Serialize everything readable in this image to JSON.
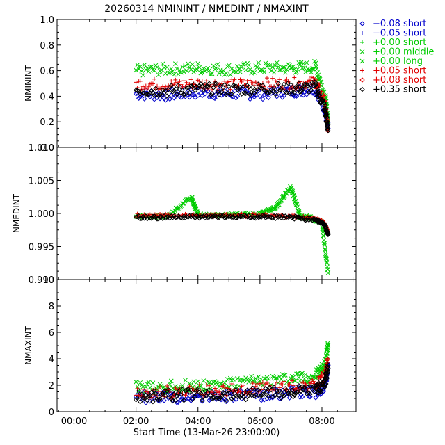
{
  "title": "20260314 NMININT / NMEDINT / NMAXINT",
  "xlabel": "Start Time (13-Mar-26 23:00:00)",
  "x_ticks": [
    "00:00",
    "02:00",
    "04:00",
    "06:00",
    "08:00"
  ],
  "legend": [
    {
      "label": "−0.08 short",
      "color": "#0000cc",
      "marker": "diamond"
    },
    {
      "label": "−0.05 short",
      "color": "#0000cc",
      "marker": "plus"
    },
    {
      "label": "+0.00 short",
      "color": "#00cc00",
      "marker": "plus"
    },
    {
      "label": "+0.00 middle",
      "color": "#00cc00",
      "marker": "cross"
    },
    {
      "label": "+0.00 long",
      "color": "#00cc00",
      "marker": "cross"
    },
    {
      "label": "+0.05 short",
      "color": "#e00000",
      "marker": "plus"
    },
    {
      "label": "+0.08 short",
      "color": "#e00000",
      "marker": "diamond"
    },
    {
      "label": "+0.35 short",
      "color": "#000000",
      "marker": "diamond"
    }
  ],
  "chart_data": [
    {
      "type": "scatter",
      "ylabel": "NMININT",
      "ylim": [
        0,
        1.0
      ],
      "yticks": [
        "0.0",
        "0.2",
        "0.4",
        "0.6",
        "0.8",
        "1.0"
      ],
      "x_range_hours": [
        -0.55,
        9.1
      ],
      "series": [
        {
          "name": "−0.08 short",
          "x": [
            2.0,
            3.0,
            4.0,
            5.0,
            6.0,
            7.0,
            7.8,
            8.1,
            8.2
          ],
          "y": [
            0.42,
            0.41,
            0.43,
            0.42,
            0.42,
            0.44,
            0.46,
            0.3,
            0.15
          ]
        },
        {
          "name": "+0.00 middle",
          "x": [
            2.0,
            3.0,
            4.0,
            5.0,
            6.0,
            7.0,
            7.8,
            8.1,
            8.2
          ],
          "y": [
            0.6,
            0.61,
            0.62,
            0.61,
            0.62,
            0.62,
            0.63,
            0.4,
            0.2
          ]
        },
        {
          "name": "+0.05 short",
          "x": [
            2.0,
            3.0,
            4.0,
            5.0,
            6.0,
            7.0,
            7.8,
            8.1,
            8.2
          ],
          "y": [
            0.5,
            0.49,
            0.5,
            0.49,
            0.5,
            0.5,
            0.51,
            0.35,
            0.15
          ]
        },
        {
          "name": "+0.35 short",
          "x": [
            2.0,
            3.0,
            4.0,
            5.0,
            6.0,
            7.0,
            7.8,
            8.1,
            8.2
          ],
          "y": [
            0.45,
            0.44,
            0.46,
            0.45,
            0.46,
            0.46,
            0.47,
            0.3,
            0.13
          ]
        }
      ]
    },
    {
      "type": "scatter",
      "ylabel": "NMEDINT",
      "ylim": [
        0.99,
        1.01
      ],
      "yticks": [
        "0.990",
        "0.995",
        "1.000",
        "1.005",
        "1.010"
      ],
      "x_range_hours": [
        -0.55,
        9.1
      ],
      "series": [
        {
          "name": "+0.00 middle",
          "x": [
            2.0,
            3.0,
            3.8,
            4.0,
            5.0,
            6.0,
            6.5,
            7.0,
            7.3,
            7.6,
            8.0,
            8.2
          ],
          "y": [
            0.9995,
            0.9996,
            1.0025,
            0.9997,
            0.9998,
            0.9999,
            1.0008,
            1.004,
            0.9995,
            0.9994,
            0.9985,
            0.991
          ]
        },
        {
          "name": "+0.05 short",
          "x": [
            2.0,
            3.0,
            4.0,
            5.0,
            6.0,
            7.0,
            7.8,
            8.1,
            8.2
          ],
          "y": [
            0.9997,
            0.9997,
            0.9997,
            0.9997,
            0.9997,
            0.9996,
            0.9993,
            0.9985,
            0.997
          ]
        },
        {
          "name": "+0.35 short",
          "x": [
            2.0,
            3.0,
            4.0,
            5.0,
            6.0,
            7.0,
            7.8,
            8.1,
            8.2
          ],
          "y": [
            0.9994,
            0.9994,
            0.9995,
            0.9995,
            0.9995,
            0.9994,
            0.9991,
            0.9982,
            0.9968
          ]
        }
      ]
    },
    {
      "type": "scatter",
      "ylabel": "NMAXINT",
      "ylim": [
        0,
        10
      ],
      "yticks": [
        "0",
        "2",
        "4",
        "6",
        "8",
        "10"
      ],
      "x_range_hours": [
        -0.55,
        9.1
      ],
      "series": [
        {
          "name": "−0.08 short",
          "x": [
            2.0,
            3.0,
            4.0,
            5.0,
            6.0,
            7.0,
            7.8,
            8.1,
            8.2
          ],
          "y": [
            1.1,
            1.1,
            1.2,
            1.2,
            1.3,
            1.4,
            1.5,
            2.0,
            3.5
          ]
        },
        {
          "name": "+0.00 middle",
          "x": [
            2.0,
            3.0,
            4.0,
            5.0,
            6.0,
            7.0,
            7.8,
            8.1,
            8.2
          ],
          "y": [
            1.8,
            1.9,
            2.0,
            2.1,
            2.3,
            2.5,
            2.7,
            3.5,
            5.0
          ]
        },
        {
          "name": "+0.05 short",
          "x": [
            2.0,
            3.0,
            4.0,
            5.0,
            6.0,
            7.0,
            7.8,
            8.1,
            8.2
          ],
          "y": [
            1.5,
            1.5,
            1.6,
            1.7,
            1.8,
            1.9,
            2.0,
            2.8,
            4.0
          ]
        },
        {
          "name": "+0.35 short",
          "x": [
            2.0,
            3.0,
            4.0,
            5.0,
            6.0,
            7.0,
            7.8,
            8.1,
            8.2
          ],
          "y": [
            1.2,
            1.2,
            1.3,
            1.3,
            1.4,
            1.5,
            1.6,
            2.2,
            3.3
          ]
        }
      ]
    }
  ]
}
